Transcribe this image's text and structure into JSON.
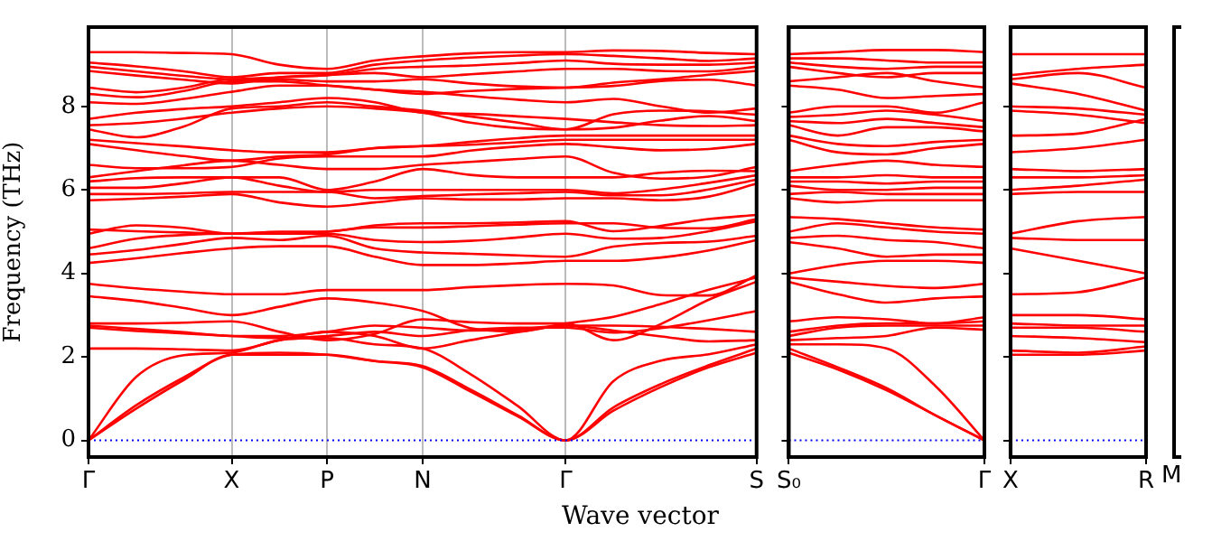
{
  "chart_data": [
    {
      "type": "line",
      "ylabel": "Frequency (THz)",
      "xlabel": "Wave vector",
      "ylim": [
        -0.4,
        9.9
      ],
      "yticks": [
        0,
        2,
        4,
        6,
        8
      ],
      "grid": "x",
      "categories": [
        "Γ",
        null,
        null,
        "X",
        null,
        "P",
        null,
        "N",
        null,
        null,
        "Γ",
        null,
        null,
        null,
        "S"
      ],
      "ref_lines": [
        {
          "axis": "y",
          "value": 0,
          "color": "#0000ff",
          "line_style": "dotted"
        }
      ],
      "series": [
        {
          "color": "#ff0000",
          "values": [
            0,
            0.76,
            1.45,
            2.05,
            2.05,
            2.05,
            1.9,
            1.75,
            1.17,
            0.57,
            0,
            0.71,
            1.28,
            1.75,
            2.1
          ]
        },
        {
          "color": "#ff0000",
          "values": [
            0,
            0.84,
            1.51,
            2.05,
            2.1,
            2.05,
            1.9,
            1.78,
            1.22,
            0.6,
            0,
            0.79,
            1.35,
            1.8,
            2.2
          ]
        },
        {
          "color": "#ff0000",
          "values": [
            0,
            1.52,
            2.04,
            2.1,
            2.4,
            2.45,
            2.3,
            2.2,
            1.59,
            0.82,
            0,
            1.42,
            1.91,
            2.06,
            2.3
          ]
        },
        {
          "color": "#ff0000",
          "values": [
            2.2,
            2.2,
            2.18,
            2.15,
            2.4,
            2.6,
            2.5,
            2.2,
            2.4,
            2.59,
            2.75,
            2.63,
            2.49,
            2.37,
            2.4
          ]
        },
        {
          "color": "#ff0000",
          "values": [
            2.7,
            2.62,
            2.56,
            2.5,
            2.45,
            2.5,
            2.6,
            2.5,
            2.64,
            2.7,
            2.7,
            2.58,
            2.69,
            2.88,
            3.1
          ]
        },
        {
          "color": "#ff0000",
          "values": [
            2.75,
            2.67,
            2.59,
            2.5,
            2.5,
            2.6,
            2.75,
            2.7,
            2.63,
            2.66,
            2.75,
            2.75,
            2.72,
            2.67,
            2.6
          ]
        },
        {
          "color": "#ff0000",
          "values": [
            2.8,
            2.8,
            2.82,
            2.85,
            2.6,
            2.4,
            2.55,
            2.9,
            2.83,
            2.8,
            2.8,
            2.4,
            2.79,
            3.37,
            3.8
          ]
        },
        {
          "color": "#ff0000",
          "values": [
            3.45,
            3.34,
            3.17,
            3.0,
            3.2,
            3.4,
            3.3,
            3.1,
            2.69,
            2.61,
            2.8,
            2.96,
            3.27,
            3.61,
            3.9
          ]
        },
        {
          "color": "#ff0000",
          "values": [
            3.75,
            3.64,
            3.56,
            3.5,
            3.5,
            3.6,
            3.6,
            3.6,
            3.67,
            3.72,
            3.75,
            3.71,
            3.48,
            3.47,
            3.95
          ]
        },
        {
          "color": "#ff0000",
          "values": [
            4.25,
            4.36,
            4.49,
            4.6,
            4.65,
            4.65,
            4.4,
            4.2,
            4.2,
            4.24,
            4.3,
            4.3,
            4.38,
            4.55,
            4.8
          ]
        },
        {
          "color": "#ff0000",
          "values": [
            4.45,
            4.56,
            4.71,
            4.85,
            4.8,
            4.9,
            4.6,
            4.5,
            4.47,
            4.43,
            4.4,
            4.64,
            4.73,
            4.76,
            4.9
          ]
        },
        {
          "color": "#ff0000",
          "values": [
            4.6,
            4.83,
            4.92,
            4.95,
            4.95,
            4.95,
            4.8,
            4.75,
            4.78,
            4.86,
            4.95,
            4.83,
            4.85,
            5.01,
            5.25
          ]
        },
        {
          "color": "#ff0000",
          "values": [
            4.95,
            5.15,
            5.09,
            4.95,
            4.95,
            5.0,
            5.1,
            5.1,
            5.13,
            5.17,
            5.2,
            5.2,
            5.09,
            5.08,
            5.3
          ]
        },
        {
          "color": "#ff0000",
          "values": [
            5.05,
            5.01,
            4.98,
            4.95,
            5.0,
            5.0,
            5.15,
            5.2,
            5.2,
            5.22,
            5.25,
            5.01,
            5.14,
            5.3,
            5.4
          ]
        },
        {
          "color": "#ff0000",
          "values": [
            5.75,
            5.79,
            5.84,
            5.9,
            5.7,
            5.6,
            5.7,
            5.8,
            5.77,
            5.77,
            5.8,
            5.8,
            5.75,
            5.84,
            6.15
          ]
        },
        {
          "color": "#ff0000",
          "values": [
            5.9,
            5.9,
            5.92,
            5.95,
            5.95,
            5.95,
            5.8,
            5.85,
            5.89,
            5.92,
            5.95,
            5.87,
            5.87,
            6.01,
            6.25
          ]
        },
        {
          "color": "#ff0000",
          "values": [
            6.05,
            6.05,
            6.16,
            6.3,
            6.1,
            5.95,
            6.0,
            6.0,
            6.0,
            6.0,
            6.0,
            5.92,
            6.01,
            6.17,
            6.35
          ]
        },
        {
          "color": "#ff0000",
          "values": [
            6.2,
            6.28,
            6.3,
            6.3,
            6.3,
            6.0,
            6.2,
            6.5,
            6.36,
            6.3,
            6.3,
            6.3,
            6.41,
            6.46,
            6.45
          ]
        },
        {
          "color": "#ff0000",
          "values": [
            6.3,
            6.45,
            6.59,
            6.7,
            6.6,
            6.5,
            6.5,
            6.6,
            6.67,
            6.74,
            6.8,
            6.41,
            6.27,
            6.32,
            6.55
          ]
        },
        {
          "color": "#ff0000",
          "values": [
            6.6,
            6.52,
            6.52,
            6.55,
            6.75,
            6.8,
            6.8,
            6.8,
            6.94,
            7.04,
            7.1,
            7.02,
            6.95,
            6.98,
            7.1
          ]
        },
        {
          "color": "#ff0000",
          "values": [
            7.1,
            6.95,
            6.81,
            6.7,
            6.8,
            6.85,
            7.0,
            7.05,
            7.08,
            7.14,
            7.2,
            7.2,
            7.2,
            7.2,
            7.2
          ]
        },
        {
          "color": "#ff0000",
          "values": [
            7.2,
            7.12,
            7.04,
            6.95,
            6.9,
            6.9,
            7.0,
            7.05,
            7.15,
            7.24,
            7.3,
            7.3,
            7.3,
            7.3,
            7.3
          ]
        },
        {
          "color": "#ff0000",
          "values": [
            7.45,
            7.26,
            7.52,
            7.95,
            8.0,
            8.1,
            8.0,
            7.9,
            7.76,
            7.61,
            7.45,
            7.49,
            7.66,
            7.77,
            7.65
          ]
        },
        {
          "color": "#ff0000",
          "values": [
            7.55,
            7.6,
            7.71,
            7.85,
            7.95,
            8.0,
            7.95,
            7.85,
            7.61,
            7.48,
            7.45,
            7.81,
            7.9,
            7.88,
            7.8
          ]
        },
        {
          "color": "#ff0000",
          "values": [
            7.7,
            7.85,
            7.94,
            8.0,
            8.1,
            8.2,
            8.1,
            7.85,
            7.82,
            7.76,
            7.7,
            7.62,
            7.55,
            7.53,
            7.55
          ]
        },
        {
          "color": "#ff0000",
          "values": [
            8.1,
            8.06,
            8.18,
            8.35,
            8.5,
            8.5,
            8.4,
            8.35,
            8.25,
            8.16,
            8.1,
            8.18,
            8.0,
            7.85,
            7.95
          ]
        },
        {
          "color": "#ff0000",
          "values": [
            8.3,
            8.22,
            8.37,
            8.6,
            8.6,
            8.5,
            8.4,
            8.3,
            8.37,
            8.42,
            8.45,
            8.49,
            8.61,
            8.64,
            8.5
          ]
        },
        {
          "color": "#ff0000",
          "values": [
            8.45,
            8.34,
            8.45,
            8.65,
            8.65,
            8.6,
            8.6,
            8.65,
            8.55,
            8.48,
            8.45,
            8.57,
            8.65,
            8.76,
            8.85
          ]
        },
        {
          "color": "#ff0000",
          "values": [
            8.85,
            8.74,
            8.64,
            8.55,
            8.7,
            8.75,
            8.8,
            8.7,
            8.77,
            8.84,
            8.9,
            8.9,
            8.85,
            8.84,
            8.95
          ]
        },
        {
          "color": "#ff0000",
          "values": [
            8.95,
            8.84,
            8.73,
            8.65,
            8.7,
            8.75,
            8.9,
            8.95,
            8.98,
            9.04,
            9.1,
            9.02,
            9.0,
            9.0,
            9.05
          ]
        },
        {
          "color": "#ff0000",
          "values": [
            9.05,
            8.96,
            8.84,
            8.7,
            8.8,
            8.8,
            9.0,
            9.1,
            9.17,
            9.22,
            9.25,
            9.21,
            9.15,
            9.09,
            9.15
          ]
        },
        {
          "color": "#ff0000",
          "values": [
            9.3,
            9.3,
            9.28,
            9.25,
            9.0,
            8.9,
            9.1,
            9.2,
            9.27,
            9.3,
            9.3,
            9.34,
            9.33,
            9.28,
            9.25
          ]
        }
      ]
    },
    {
      "type": "line",
      "tick_labels": "x",
      "ylim": [
        -0.4,
        9.9
      ],
      "yticks": [
        0,
        2,
        4,
        6,
        8
      ],
      "categories": [
        "S₀",
        null,
        null,
        null,
        "Γ"
      ],
      "ref_lines": [
        {
          "axis": "y",
          "value": 0,
          "color": "#0000ff",
          "line_style": "dotted"
        }
      ],
      "series": [
        {
          "color": "#ff0000",
          "values": [
            2.1,
            1.7,
            1.2,
            0.6,
            0
          ]
        },
        {
          "color": "#ff0000",
          "values": [
            2.2,
            1.75,
            1.25,
            0.6,
            0
          ]
        },
        {
          "color": "#ff0000",
          "values": [
            2.3,
            2.3,
            2.2,
            1.3,
            0
          ]
        },
        {
          "color": "#ff0000",
          "values": [
            2.4,
            2.45,
            2.5,
            2.7,
            2.65
          ]
        },
        {
          "color": "#ff0000",
          "values": [
            2.5,
            2.7,
            2.75,
            2.75,
            2.75
          ]
        },
        {
          "color": "#ff0000",
          "values": [
            2.6,
            2.75,
            2.8,
            2.8,
            2.85
          ]
        },
        {
          "color": "#ff0000",
          "values": [
            2.85,
            2.95,
            2.9,
            2.8,
            2.95
          ]
        },
        {
          "color": "#ff0000",
          "values": [
            3.8,
            3.5,
            3.3,
            3.4,
            3.45
          ]
        },
        {
          "color": "#ff0000",
          "values": [
            3.9,
            3.8,
            3.7,
            3.65,
            3.75
          ]
        },
        {
          "color": "#ff0000",
          "values": [
            4.0,
            4.2,
            4.3,
            4.3,
            4.25
          ]
        },
        {
          "color": "#ff0000",
          "values": [
            4.75,
            4.6,
            4.4,
            4.45,
            4.45
          ]
        },
        {
          "color": "#ff0000",
          "values": [
            4.85,
            4.9,
            4.8,
            4.75,
            4.6
          ]
        },
        {
          "color": "#ff0000",
          "values": [
            5.0,
            5.2,
            5.1,
            5.0,
            4.95
          ]
        },
        {
          "color": "#ff0000",
          "values": [
            5.35,
            5.3,
            5.2,
            5.1,
            5.05
          ]
        },
        {
          "color": "#ff0000",
          "values": [
            5.8,
            5.7,
            5.75,
            5.75,
            5.75
          ]
        },
        {
          "color": "#ff0000",
          "values": [
            5.9,
            5.95,
            5.9,
            5.9,
            5.9
          ]
        },
        {
          "color": "#ff0000",
          "values": [
            6.1,
            6.0,
            6.0,
            6.05,
            6.05
          ]
        },
        {
          "color": "#ff0000",
          "values": [
            6.2,
            6.2,
            6.15,
            6.2,
            6.2
          ]
        },
        {
          "color": "#ff0000",
          "values": [
            6.3,
            6.3,
            6.35,
            6.3,
            6.3
          ]
        },
        {
          "color": "#ff0000",
          "values": [
            6.45,
            6.6,
            6.7,
            6.6,
            6.55
          ]
        },
        {
          "color": "#ff0000",
          "values": [
            7.2,
            6.9,
            6.85,
            7.0,
            7.1
          ]
        },
        {
          "color": "#ff0000",
          "values": [
            7.3,
            7.1,
            7.05,
            7.15,
            7.2
          ]
        },
        {
          "color": "#ff0000",
          "values": [
            7.55,
            7.3,
            7.5,
            7.5,
            7.4
          ]
        },
        {
          "color": "#ff0000",
          "values": [
            7.65,
            7.6,
            7.7,
            7.6,
            7.5
          ]
        },
        {
          "color": "#ff0000",
          "values": [
            7.75,
            7.8,
            7.9,
            7.8,
            7.65
          ]
        },
        {
          "color": "#ff0000",
          "values": [
            7.85,
            8.0,
            8.0,
            7.85,
            8.1
          ]
        },
        {
          "color": "#ff0000",
          "values": [
            8.5,
            8.4,
            8.2,
            8.25,
            8.3
          ]
        },
        {
          "color": "#ff0000",
          "values": [
            8.6,
            8.7,
            8.8,
            8.6,
            8.45
          ]
        },
        {
          "color": "#ff0000",
          "values": [
            8.95,
            8.8,
            8.7,
            8.8,
            8.8
          ]
        },
        {
          "color": "#ff0000",
          "values": [
            9.05,
            8.95,
            8.9,
            8.95,
            8.95
          ]
        },
        {
          "color": "#ff0000",
          "values": [
            9.15,
            9.15,
            9.1,
            9.05,
            9.05
          ]
        },
        {
          "color": "#ff0000",
          "values": [
            9.25,
            9.3,
            9.35,
            9.35,
            9.3
          ]
        }
      ]
    },
    {
      "type": "line",
      "tick_labels": "x",
      "ylim": [
        -0.4,
        9.9
      ],
      "yticks": [
        0,
        2,
        4,
        6,
        8
      ],
      "categories": [
        "X",
        null,
        "R"
      ],
      "annotations": [
        "M"
      ],
      "ref_lines": [
        {
          "axis": "y",
          "value": 0,
          "color": "#0000ff",
          "line_style": "dotted"
        }
      ],
      "series": [
        {
          "color": "#ff0000",
          "values": [
            2.05,
            2.05,
            2.15
          ]
        },
        {
          "color": "#ff0000",
          "values": [
            2.15,
            2.1,
            2.25
          ]
        },
        {
          "color": "#ff0000",
          "values": [
            2.5,
            2.45,
            2.35
          ]
        },
        {
          "color": "#ff0000",
          "values": [
            2.7,
            2.7,
            2.6
          ]
        },
        {
          "color": "#ff0000",
          "values": [
            2.8,
            2.75,
            2.75
          ]
        },
        {
          "color": "#ff0000",
          "values": [
            3.0,
            3.0,
            2.9
          ]
        },
        {
          "color": "#ff0000",
          "values": [
            3.5,
            3.55,
            3.9
          ]
        },
        {
          "color": "#ff0000",
          "values": [
            4.6,
            4.3,
            4.0
          ]
        },
        {
          "color": "#ff0000",
          "values": [
            4.85,
            4.8,
            4.8
          ]
        },
        {
          "color": "#ff0000",
          "values": [
            4.95,
            5.25,
            5.35
          ]
        },
        {
          "color": "#ff0000",
          "values": [
            5.9,
            5.95,
            5.95
          ]
        },
        {
          "color": "#ff0000",
          "values": [
            6.0,
            6.1,
            6.25
          ]
        },
        {
          "color": "#ff0000",
          "values": [
            6.3,
            6.3,
            6.35
          ]
        },
        {
          "color": "#ff0000",
          "values": [
            6.5,
            6.45,
            6.5
          ]
        },
        {
          "color": "#ff0000",
          "values": [
            6.9,
            7.0,
            7.2
          ]
        },
        {
          "color": "#ff0000",
          "values": [
            7.3,
            7.35,
            7.7
          ]
        },
        {
          "color": "#ff0000",
          "values": [
            7.9,
            7.8,
            7.6
          ]
        },
        {
          "color": "#ff0000",
          "values": [
            8.0,
            7.95,
            7.8
          ]
        },
        {
          "color": "#ff0000",
          "values": [
            8.55,
            8.3,
            7.9
          ]
        },
        {
          "color": "#ff0000",
          "values": [
            8.65,
            8.8,
            8.45
          ]
        },
        {
          "color": "#ff0000",
          "values": [
            8.75,
            8.9,
            9.0
          ]
        },
        {
          "color": "#ff0000",
          "values": [
            9.25,
            9.25,
            9.25
          ]
        }
      ]
    }
  ]
}
